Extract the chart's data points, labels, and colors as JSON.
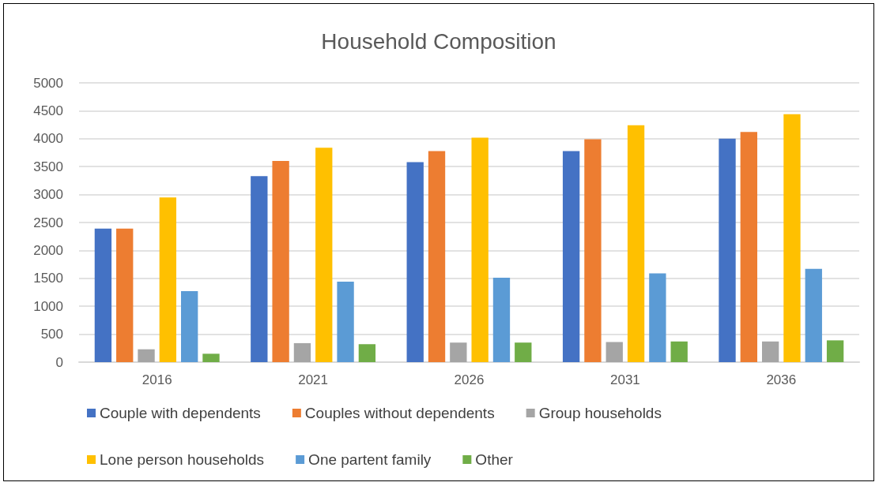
{
  "chart_data": {
    "type": "bar",
    "title": "Household Composition",
    "categories": [
      "2016",
      "2021",
      "2026",
      "2031",
      "2036"
    ],
    "series": [
      {
        "name": "Couple with dependents",
        "color": "#4472c4",
        "values": [
          2390,
          3330,
          3580,
          3780,
          4000
        ]
      },
      {
        "name": "Couples without dependents",
        "color": "#ed7d31",
        "values": [
          2390,
          3600,
          3780,
          3990,
          4120
        ]
      },
      {
        "name": "Group households",
        "color": "#a5a5a5",
        "values": [
          230,
          340,
          350,
          360,
          370
        ]
      },
      {
        "name": "Lone person households",
        "color": "#ffc000",
        "values": [
          2950,
          3840,
          4020,
          4240,
          4440
        ]
      },
      {
        "name": "One partent family",
        "color": "#5b9bd5",
        "values": [
          1270,
          1440,
          1510,
          1590,
          1670
        ]
      },
      {
        "name": "Other",
        "color": "#70ad47",
        "values": [
          150,
          320,
          350,
          370,
          390
        ]
      }
    ],
    "ylim": [
      0,
      5000
    ],
    "yticks": [
      0,
      500,
      1000,
      1500,
      2000,
      2500,
      3000,
      3500,
      4000,
      4500,
      5000
    ],
    "grid": "y",
    "legend": "bottom"
  }
}
